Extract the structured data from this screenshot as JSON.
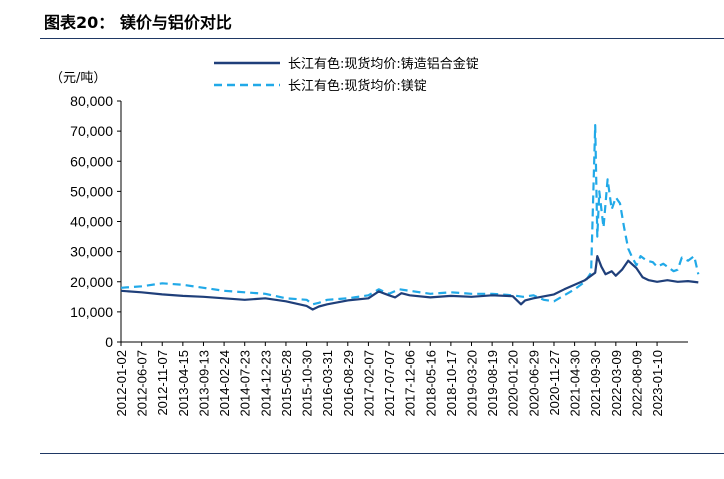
{
  "header": {
    "title": "图表20： 镁价与铝价对比"
  },
  "chart_data": {
    "type": "line",
    "unit_label": "（元/吨）",
    "yticks": [
      "0",
      "10,000",
      "20,000",
      "30,000",
      "40,000",
      "50,000",
      "60,000",
      "70,000",
      "80,000"
    ],
    "ylim": [
      0,
      80000
    ],
    "xticks": [
      "2012-01-02",
      "2012-06-07",
      "2012-11-07",
      "2013-04-15",
      "2013-09-13",
      "2014-02-24",
      "2014-07-23",
      "2014-12-23",
      "2015-05-28",
      "2015-10-30",
      "2016-03-31",
      "2016-08-29",
      "2017-02-07",
      "2017-07-07",
      "2017-12-06",
      "2018-05-16",
      "2018-10-17",
      "2019-03-20",
      "2019-08-19",
      "2020-01-20",
      "2020-06-29",
      "2020-11-27",
      "2021-04-30",
      "2021-09-30",
      "2022-03-09",
      "2022-08-09",
      "2023-01-10"
    ],
    "legend_position": "top",
    "grid": false,
    "series": [
      {
        "name": "长江有色:现货均价:铸造铝合金锭",
        "style": "solid",
        "color": "#1f3f7a",
        "x": [
          0,
          1,
          2,
          3,
          4,
          5,
          6,
          7,
          8,
          9,
          9.3,
          9.6,
          10,
          11,
          12,
          12.5,
          13,
          13.3,
          13.6,
          14,
          15,
          16,
          17,
          18,
          19,
          19.4,
          19.6,
          20,
          21,
          21.5,
          22,
          22.5,
          23,
          23.1,
          23.3,
          23.5,
          23.8,
          24,
          24.3,
          24.6,
          25,
          25.3,
          25.6,
          26,
          26.5,
          27,
          27.5,
          28
        ],
        "values": [
          17000,
          16500,
          15800,
          15300,
          15000,
          14500,
          14000,
          14500,
          13500,
          12000,
          10800,
          11800,
          12500,
          13800,
          14500,
          16800,
          15500,
          14800,
          16200,
          15500,
          14800,
          15300,
          15000,
          15500,
          15200,
          12500,
          13800,
          14500,
          15800,
          17500,
          19000,
          20500,
          23000,
          28500,
          25000,
          22500,
          23500,
          22000,
          24000,
          27000,
          24500,
          21500,
          20500,
          20000,
          20500,
          20000,
          20200,
          19800
        ]
      },
      {
        "name": "长江有色:现货均价:镁锭",
        "style": "dashed",
        "color": "#21a9e8",
        "x": [
          0,
          1,
          2,
          3,
          4,
          5,
          6,
          7,
          8,
          9,
          9.3,
          9.6,
          10,
          11,
          12,
          12.5,
          13,
          13.5,
          14,
          15,
          16,
          17,
          18,
          19,
          19.5,
          20,
          20.5,
          21,
          21.5,
          22,
          22.5,
          22.8,
          23,
          23.1,
          23.2,
          23.4,
          23.6,
          23.8,
          24,
          24.2,
          24.4,
          24.6,
          24.8,
          25,
          25.2,
          25.5,
          25.8,
          26,
          26.3,
          26.6,
          26.8,
          27,
          27.2,
          27.5,
          27.8,
          28
        ],
        "values": [
          18000,
          18500,
          19500,
          19000,
          18000,
          17000,
          16500,
          16000,
          14500,
          14000,
          12500,
          13000,
          14000,
          14500,
          15500,
          17500,
          16000,
          17500,
          17000,
          16000,
          16500,
          16000,
          16000,
          15500,
          15000,
          15500,
          14000,
          13500,
          15500,
          17500,
          20000,
          23000,
          72000,
          35000,
          50000,
          38000,
          54000,
          44000,
          48000,
          46000,
          38000,
          31000,
          28000,
          25500,
          28500,
          27000,
          26500,
          25000,
          26000,
          24500,
          23500,
          24000,
          28000,
          27000,
          28500,
          22500
        ]
      }
    ]
  }
}
